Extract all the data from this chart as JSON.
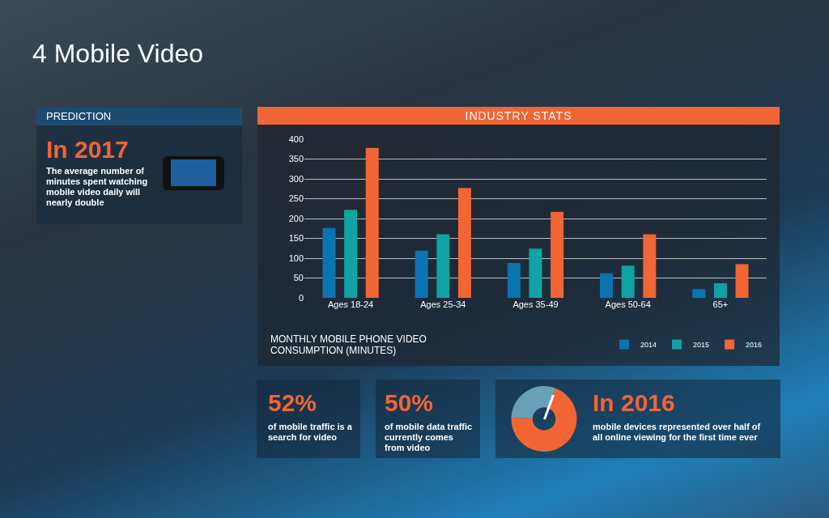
{
  "chart_data": [
    {
      "type": "other",
      "title": "4 Mobile Video",
      "annotations": [
        "PREDICTION",
        "In 2017",
        "The average number of minutes spent watching mobile video daily will nearly double"
      ]
    },
    {
      "type": "bar",
      "title": "INDUSTRY STATS",
      "xlabel": "MONTHLY MOBILE PHONE VIDEO CONSUMPTION (MINUTES)",
      "categories": [
        "Ages 18-24",
        "Ages 25-34",
        "Ages 35-49",
        "Ages 50-64",
        "65+"
      ],
      "series": [
        {
          "name": "2014",
          "color": "#0a74b0",
          "values": [
            176,
            119,
            88,
            62,
            22
          ]
        },
        {
          "name": "2015",
          "color": "#0fa3a3",
          "values": [
            222,
            160,
            124,
            81,
            37
          ]
        },
        {
          "name": "2016",
          "color": "#f26535",
          "values": [
            378,
            277,
            217,
            160,
            85
          ]
        }
      ],
      "ylim": [
        0,
        400
      ],
      "yticks": [
        0,
        50,
        100,
        150,
        200,
        250,
        300,
        350,
        400
      ],
      "grid": "y",
      "legend": "bottom right"
    },
    {
      "type": "other",
      "annotations": [
        "52%",
        "of mobile traffic is a search for video",
        "50%",
        "of mobile data traffic currently comes from video"
      ]
    },
    {
      "type": "donut",
      "categories": [
        null,
        null
      ],
      "values": [
        70,
        30
      ],
      "colors": [
        "#f26535",
        "#6a9fb8"
      ],
      "annotations": [
        "In 2016",
        "mobile devices represented over half of all online viewing for the first time ever"
      ]
    }
  ]
}
